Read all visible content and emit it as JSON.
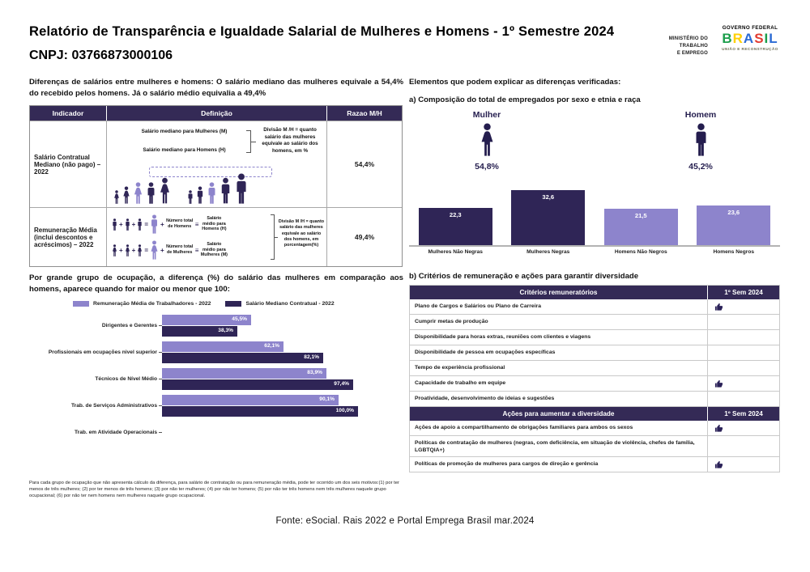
{
  "header": {
    "title": "Relatório de Transparência e Igualdade Salarial de Mulheres e Homens - 1º Semestre 2024",
    "cnpj": "CNPJ: 03766873000106",
    "ministry_lines": [
      "MINISTÉRIO DO",
      "TRABALHO",
      "E EMPREGO"
    ],
    "gov_logo": {
      "top": "GOVERNO FEDERAL",
      "word": "BRASIL",
      "bottom": "UNIÃO E RECONSTRUÇÃO"
    }
  },
  "left": {
    "intro": "Diferenças de salários entre mulheres e homens: O salário mediano das mulheres equivale a 54,4% do recebido pelos homens. Já o salário médio equivalia a 49,4%",
    "indicator_table": {
      "headers": [
        "Indicador",
        "Definição",
        "Razao M/H"
      ],
      "row1": {
        "indicator": "Salário Contratual Mediano (não pago) – 2022",
        "def_line1": "Salário mediano para Mulheres (M)",
        "def_line2": "Salário mediano para Homens (H)",
        "def_note": "Divisão M /H = quanto salário das mulheres equivale ao salário dos homens, em %",
        "ratio": "54,4%",
        "people_icons": [
          "woman-sm-dark",
          "woman-md-dark",
          "woman-lg-light",
          "man-lg-dark",
          "woman-xl-dark",
          "man-sm-dark",
          "man-md-dark",
          "man-lg-light",
          "man-xl-dark",
          "man-xxl-dark"
        ]
      },
      "row2": {
        "indicator": "Remuneração Média (inclui descontos e acréscimos) – 2022",
        "eq1_total": "Número total de Homens",
        "eq1_result": "Salário médio para Homens (H)",
        "eq2_total": "Número total de Mulheres",
        "eq2_result": "Salário médio para Mulheres (M)",
        "plus": "+",
        "equals": "=",
        "equiv": "≡",
        "def_note": "Divisão M /H = quanto salário das mulheres equivale ao salário dos homens, em porcentagem(%)",
        "ratio": "49,4%"
      }
    },
    "occupation_intro": "Por grande grupo de ocupação, a diferença (%) do salário das mulheres em comparação aos homens, aparece quando for maior ou menor que 100:",
    "footnote": "Para cada grupo de ocupação que não apresenta cálculo da diferença, para salário de contratação ou para remuneração média, pode ter ocorrido um dos seis motivos:(1) por ter menos de três mulheres; (2) por ter menos de três homens; (3) por não ter mulheres; (4) por não ter homens; (5) por não ter três homens nem três mulheres naquele grupo ocupacional; (6) por não ter nem homens nem mulheres naquele grupo ocupacional."
  },
  "right": {
    "elements_title": "Elementos que podem explicar as diferenças verificadas:",
    "section_a_title": "a) Composição do total de empregados por sexo e etnia e raça",
    "gender_split": {
      "female_label": "Mulher",
      "female_pct": "54,8%",
      "male_label": "Homem",
      "male_pct": "45,2%"
    },
    "section_b_title": "b) Critérios de remuneração e ações para garantir diversidade",
    "criteria_table": {
      "sections": [
        {
          "header": "Critérios remuneratórios",
          "period": "1º Sem 2024",
          "rows": [
            {
              "text": "Plano de Cargos e Salários ou Plano de Carreira",
              "checked": true
            },
            {
              "text": "Cumprir metas de produção",
              "checked": false
            },
            {
              "text": "Disponibilidade para horas extras, reuniões com clientes e viagens",
              "checked": false
            },
            {
              "text": "Disponibilidade de pessoa em ocupações específicas",
              "checked": false
            },
            {
              "text": "Tempo de experiência profissional",
              "checked": false
            },
            {
              "text": "Capacidade de trabalho em equipe",
              "checked": true
            },
            {
              "text": "Proatividade, desenvolvimento de ideias e sugestões",
              "checked": false
            }
          ]
        },
        {
          "header": "Ações para aumentar a diversidade",
          "period": "1º Sem 2024",
          "rows": [
            {
              "text": "Ações de apoio a compartilhamento de obrigações familiares para ambos os sexos",
              "checked": true
            },
            {
              "text": "Políticas de contratação de mulheres (negras, com deficiência, em situação de violência, chefes de família, LGBTQIA+)",
              "checked": false
            },
            {
              "text": "Políticas de promoção de mulheres para cargos de direção e gerência",
              "checked": true
            }
          ]
        }
      ]
    }
  },
  "chart_data": [
    {
      "id": "composition_by_race",
      "type": "bar",
      "title": "a) Composição do total de empregados por sexo e etnia e raça",
      "categories": [
        "Mulheres Não Negras",
        "Mulheres Negras",
        "Homens Não Negros",
        "Homens Negros"
      ],
      "values": [
        22.3,
        32.6,
        21.5,
        23.6
      ],
      "value_labels": [
        "22,3",
        "32,6",
        "21,5",
        "23,6"
      ],
      "bar_palette": [
        "#2f2556",
        "#2f2556",
        "#8d84cc",
        "#8d84cc"
      ],
      "annotations": [
        {
          "label": "Mulher",
          "value": "54,8%"
        },
        {
          "label": "Homem",
          "value": "45,2%"
        }
      ],
      "xlabel": "",
      "ylabel": "",
      "ylim": [
        0,
        35
      ],
      "grid": false,
      "legend": "none"
    },
    {
      "id": "salary_ratio_by_occupation",
      "type": "bar",
      "orientation": "horizontal",
      "title": "Por grande grupo de ocupação, a diferença (%) do salário das mulheres em comparação aos homens, aparece quando for maior ou menor que 100:",
      "categories": [
        "Dirigentes e Gerentes",
        "Profissionais em ocupações nivel superior",
        "Técnicos de Nível Médio",
        "Trab. de Serviços Administrativos",
        "Trab. em Atividade Operacionais"
      ],
      "series": [
        {
          "name": "Remuneração Média de Trabalhadores - 2022",
          "color": "#8d84cc",
          "values": [
            45.5,
            62.1,
            83.9,
            90.1,
            null
          ],
          "labels": [
            "45,5%",
            "62,1%",
            "83,9%",
            "90,1%",
            ""
          ]
        },
        {
          "name": "Salário Mediano Contratual - 2022",
          "color": "#2f2556",
          "values": [
            38.3,
            82.1,
            97.4,
            100.0,
            null
          ],
          "labels": [
            "38,3%",
            "82,1%",
            "97,4%",
            "100,0%",
            ""
          ]
        }
      ],
      "xlabel": "",
      "ylabel": "",
      "xlim": [
        0,
        100
      ],
      "grid": false,
      "legend": "top"
    }
  ],
  "fonte": "Fonte: eSocial. Rais 2022 e Portal Emprega Brasil mar.2024",
  "colors": {
    "dark_purple": "#342a56",
    "bar_dark": "#2f2556",
    "bar_light": "#8d84cc",
    "navy_text": "#241d4e",
    "baseline_gray": "#b3b3b3",
    "brasil_green": "#1b9e4b",
    "brasil_yellow": "#ffd000",
    "brasil_blue": "#2b6bd4",
    "brasil_red": "#e23b30"
  }
}
